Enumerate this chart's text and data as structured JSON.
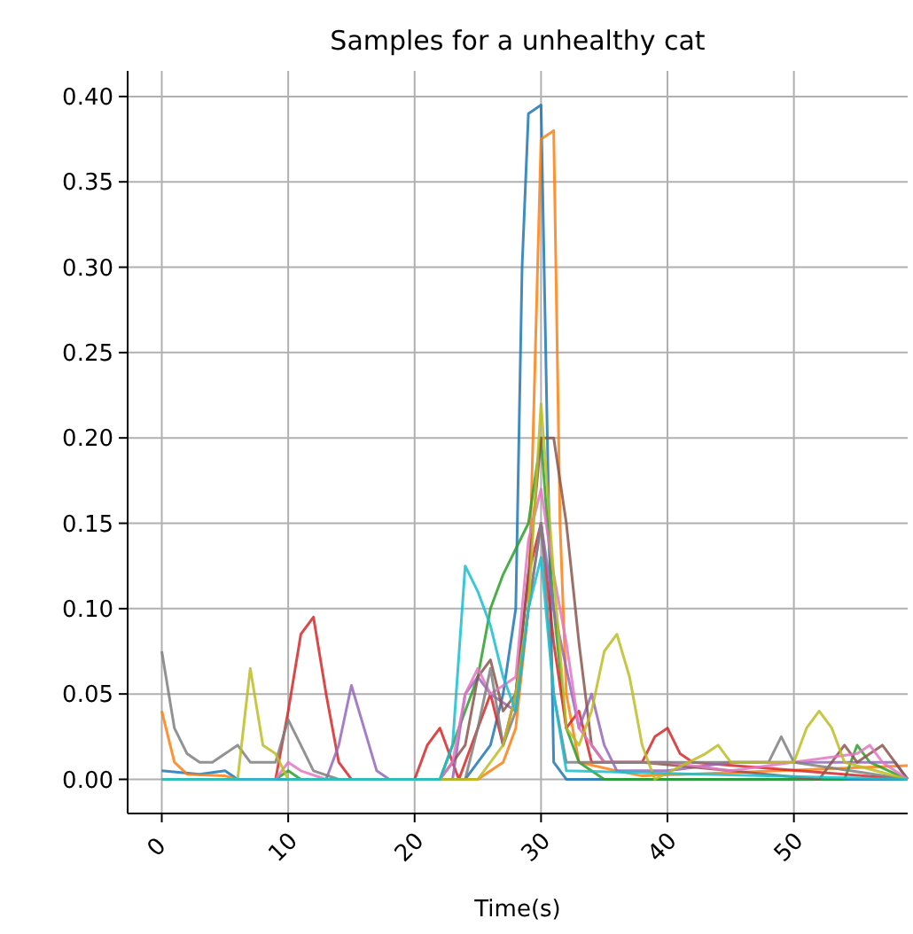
{
  "chart_data": {
    "type": "line",
    "title": "Samples for a unhealthy cat",
    "xlabel": "Time(s)",
    "xlim": [
      -2.7,
      59
    ],
    "xticks": [
      0,
      10,
      20,
      30,
      40,
      50
    ],
    "ylim": [
      -0.02,
      0.415
    ],
    "yticks": [
      {
        "value": 0,
        "label": "0.00"
      },
      {
        "value": 0.05,
        "label": "0.05"
      },
      {
        "value": 0.1,
        "label": "0.10"
      },
      {
        "value": 0.15,
        "label": "0.15"
      },
      {
        "value": 0.2,
        "label": "0.20"
      },
      {
        "value": 0.25,
        "label": "0.25"
      },
      {
        "value": 0.3,
        "label": "0.30"
      },
      {
        "value": 0.35,
        "label": "0.35"
      },
      {
        "value": 0.4,
        "label": "0.40"
      }
    ],
    "grid": true,
    "series": [
      {
        "color": "#1f77b4",
        "x": [
          0,
          3,
          5,
          6,
          24,
          26,
          27,
          28,
          28.5,
          29,
          30,
          30.5,
          31,
          32,
          59
        ],
        "values": [
          0.005,
          0.003,
          0.005,
          0,
          0,
          0.02,
          0.05,
          0.1,
          0.3,
          0.39,
          0.395,
          0.2,
          0.01,
          0,
          0
        ]
      },
      {
        "color": "#ff7f0e",
        "x": [
          0,
          1,
          2,
          5,
          6,
          25,
          26,
          27,
          28,
          29,
          30,
          31,
          31.5,
          32,
          33,
          36,
          38,
          59
        ],
        "values": [
          0.04,
          0.01,
          0.003,
          0.002,
          0,
          0,
          0.005,
          0.01,
          0.03,
          0.1,
          0.375,
          0.38,
          0.15,
          0.05,
          0.01,
          0.005,
          0.002,
          0.008
        ]
      },
      {
        "color": "#2ca02c",
        "x": [
          0,
          9,
          10,
          11,
          22,
          24,
          25,
          26,
          27,
          29,
          30,
          31,
          32,
          33,
          35,
          54,
          55,
          56,
          59
        ],
        "values": [
          0,
          0,
          0.005,
          0,
          0,
          0.04,
          0.06,
          0.1,
          0.12,
          0.15,
          0.2,
          0.1,
          0.03,
          0.01,
          0,
          0,
          0.02,
          0.01,
          0
        ]
      },
      {
        "color": "#d62728",
        "x": [
          0,
          9,
          10,
          11,
          12,
          13,
          14,
          15,
          20,
          21,
          22,
          23,
          23.5,
          25,
          26,
          27,
          28,
          29,
          30,
          31,
          32,
          33,
          34,
          38,
          39,
          40,
          41,
          42,
          59
        ],
        "values": [
          0,
          0,
          0.04,
          0.085,
          0.095,
          0.05,
          0.01,
          0,
          0,
          0.02,
          0.03,
          0.01,
          0,
          0.03,
          0.05,
          0.02,
          0.05,
          0.12,
          0.15,
          0.08,
          0.03,
          0.04,
          0.01,
          0.01,
          0.025,
          0.03,
          0.015,
          0.01,
          0
        ]
      },
      {
        "color": "#9467bd",
        "x": [
          0,
          13,
          14,
          15,
          16,
          17,
          18,
          23,
          24,
          25,
          26,
          28,
          29,
          30,
          31,
          33,
          34,
          35,
          36,
          40,
          45,
          58,
          59
        ],
        "values": [
          0,
          0,
          0.02,
          0.055,
          0.03,
          0.005,
          0,
          0,
          0.05,
          0.06,
          0.05,
          0.04,
          0.1,
          0.15,
          0.1,
          0.03,
          0.05,
          0.02,
          0.005,
          0.005,
          0.01,
          0.01,
          0
        ]
      },
      {
        "color": "#8c564b",
        "x": [
          0,
          22,
          24,
          25,
          26,
          27,
          28,
          29,
          30,
          31,
          32,
          33,
          34,
          35,
          38,
          52,
          54,
          55,
          57,
          59
        ],
        "values": [
          0,
          0,
          0.02,
          0.06,
          0.07,
          0.04,
          0.05,
          0.12,
          0.2,
          0.2,
          0.15,
          0.08,
          0.02,
          0.01,
          0.01,
          0,
          0.02,
          0.01,
          0.02,
          0
        ]
      },
      {
        "color": "#e377c2",
        "x": [
          0,
          9,
          10,
          11,
          13,
          22,
          23,
          24,
          25,
          26,
          28,
          29,
          30,
          31,
          32,
          33,
          35,
          40,
          45,
          55,
          56,
          57,
          59
        ],
        "values": [
          0,
          0,
          0.01,
          0.005,
          0,
          0,
          0.01,
          0.05,
          0.065,
          0.05,
          0.06,
          0.14,
          0.17,
          0.12,
          0.08,
          0.03,
          0.01,
          0.01,
          0.005,
          0.015,
          0.02,
          0.01,
          0
        ]
      },
      {
        "color": "#7f7f7f",
        "x": [
          0,
          1,
          2,
          3,
          4,
          6,
          7,
          9,
          10,
          11,
          12,
          14,
          24,
          25,
          26,
          27,
          28,
          29,
          30,
          31,
          32,
          48,
          49,
          50,
          59
        ],
        "values": [
          0.075,
          0.03,
          0.015,
          0.01,
          0.01,
          0.02,
          0.01,
          0.01,
          0.035,
          0.02,
          0.005,
          0,
          0,
          0.03,
          0.065,
          0.02,
          0.04,
          0.1,
          0.15,
          0.05,
          0.01,
          0.01,
          0.025,
          0.01,
          0
        ]
      },
      {
        "color": "#bcbd22",
        "x": [
          0,
          6,
          7,
          8,
          9,
          10,
          25,
          27,
          28,
          29,
          30,
          31,
          32,
          33,
          34,
          35,
          36,
          37,
          38,
          39,
          43,
          44,
          45,
          50,
          51,
          52,
          53,
          54,
          59
        ],
        "values": [
          0,
          0,
          0.065,
          0.02,
          0.015,
          0,
          0,
          0.02,
          0.05,
          0.1,
          0.22,
          0.12,
          0.03,
          0.02,
          0.04,
          0.075,
          0.085,
          0.06,
          0.02,
          0,
          0.015,
          0.02,
          0.01,
          0.01,
          0.03,
          0.04,
          0.03,
          0.01,
          0
        ]
      },
      {
        "color": "#17becf",
        "x": [
          0,
          22,
          23,
          24,
          25,
          26,
          27,
          28,
          29,
          30,
          31,
          32,
          59
        ],
        "values": [
          0,
          0,
          0.02,
          0.125,
          0.11,
          0.09,
          0.06,
          0.04,
          0.1,
          0.13,
          0.05,
          0.005,
          0
        ]
      }
    ]
  }
}
